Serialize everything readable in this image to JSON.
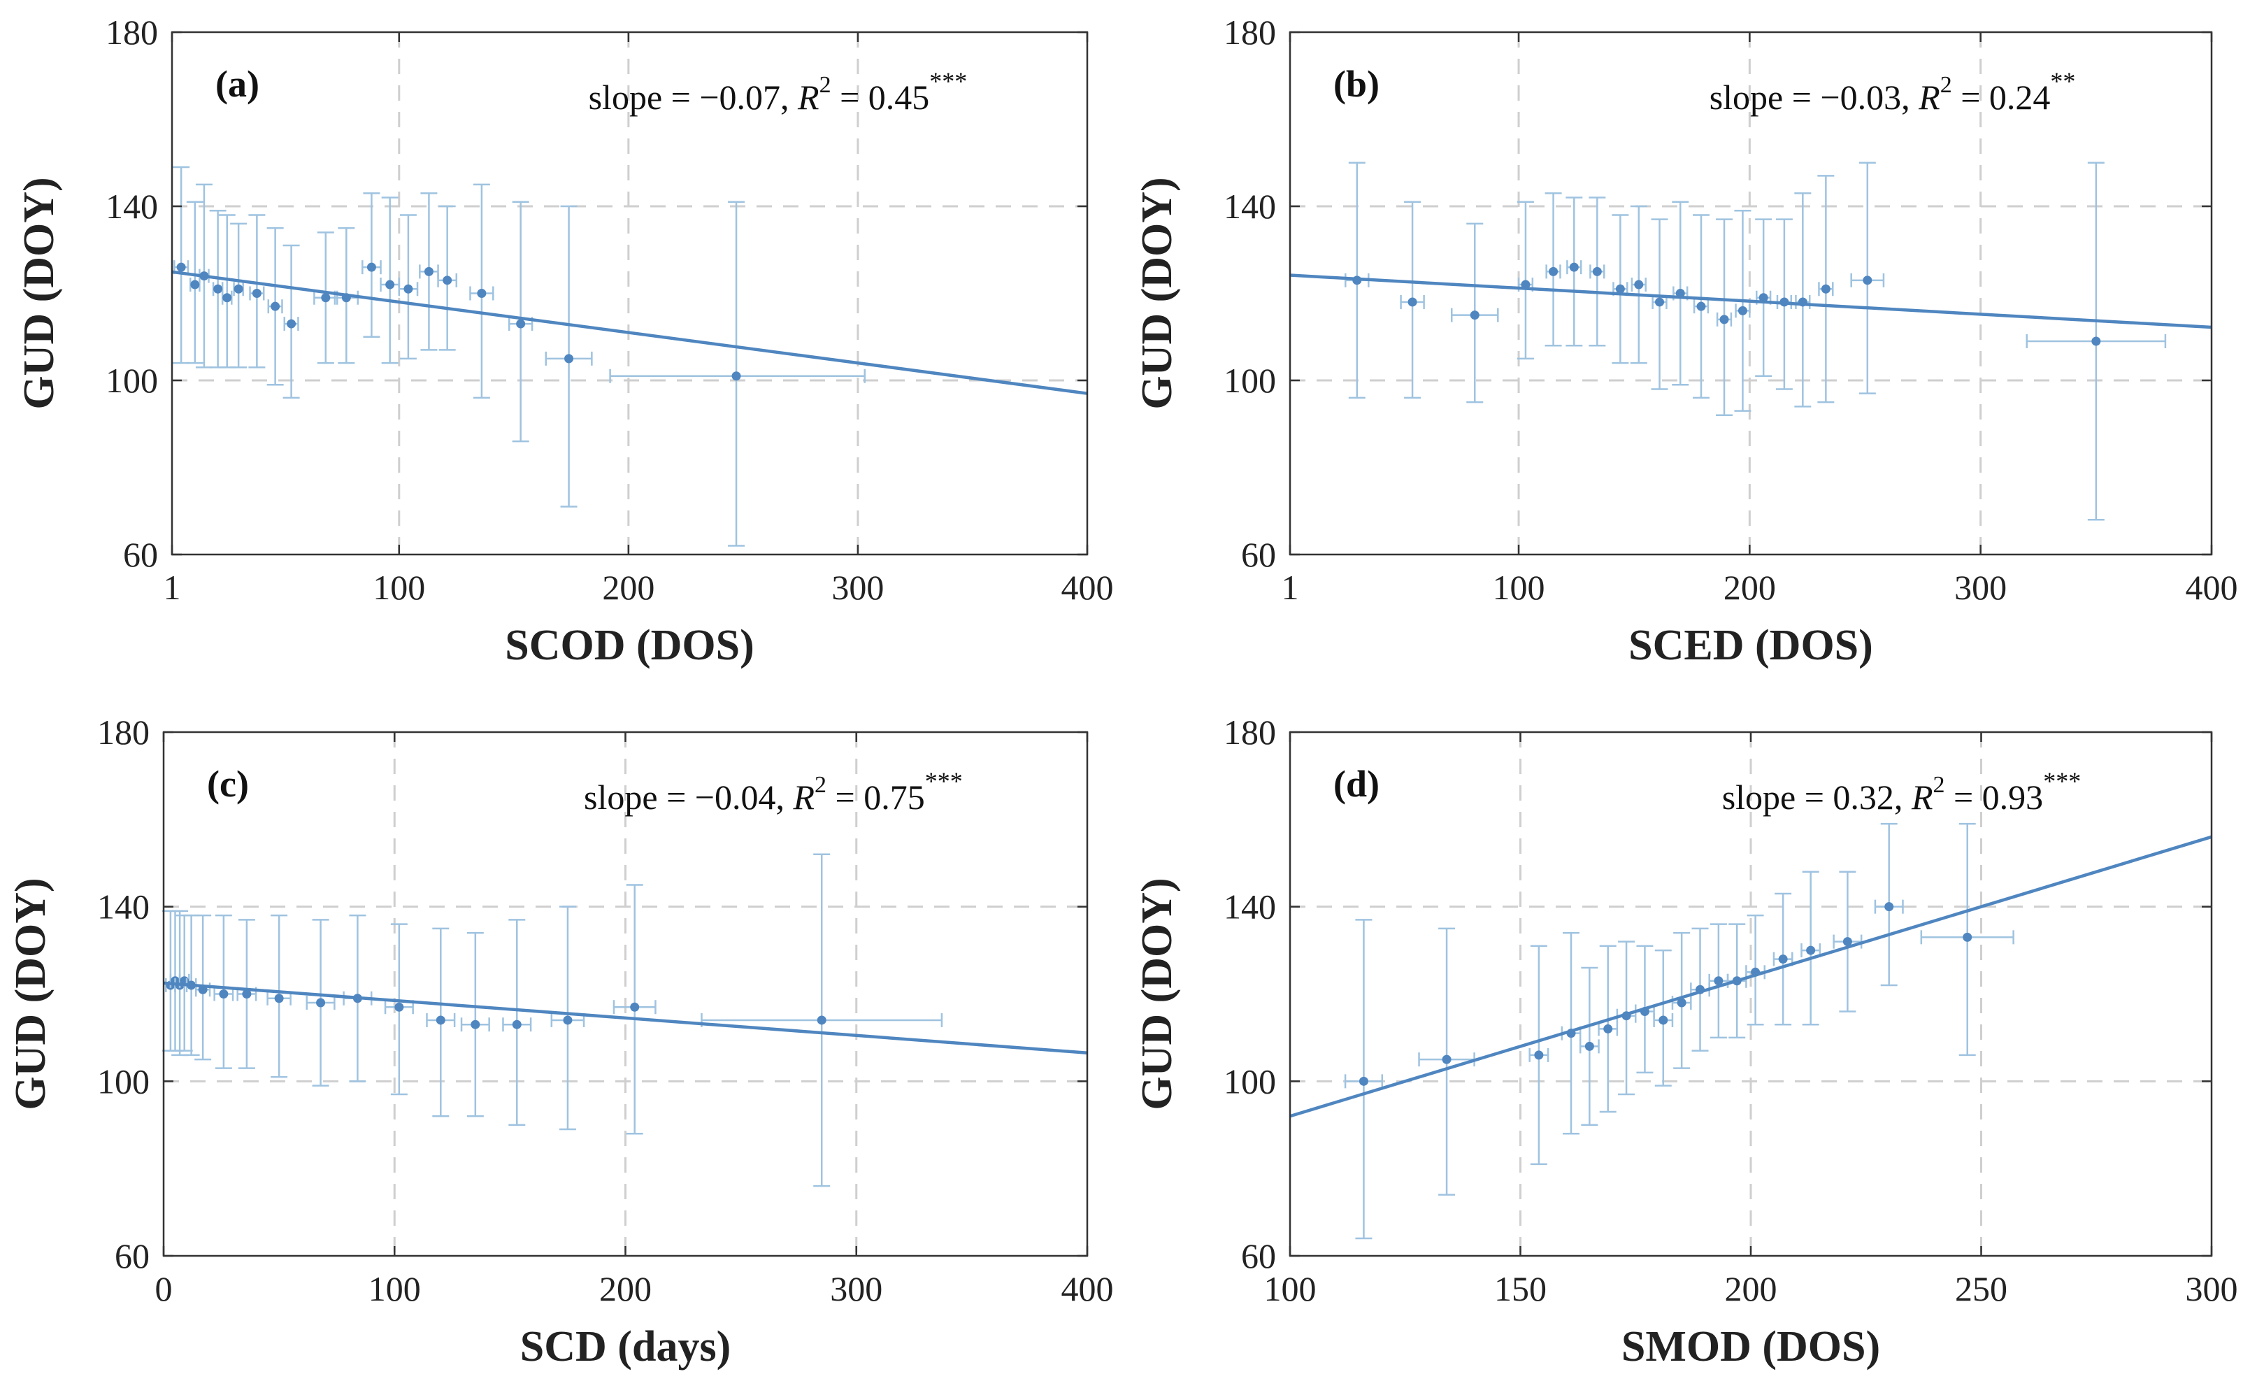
{
  "chart_data": [
    {
      "id": "a",
      "type": "scatter",
      "panel_label": "(a)",
      "stat_prefix": "slope = −0.07, ",
      "stat_r": "R",
      "stat_exp": "2",
      "stat_suffix": " = 0.45",
      "stat_sig": "***",
      "xlabel": "SCOD (DOS)",
      "ylabel": "GUD (DOY)",
      "xlim": [
        1,
        400
      ],
      "ylim": [
        60,
        180
      ],
      "xticks": [
        1,
        100,
        200,
        300,
        400
      ],
      "xtick_labels": [
        "1",
        "100",
        "200",
        "300",
        "400"
      ],
      "yticks": [
        60,
        100,
        140,
        180
      ],
      "ytick_labels": [
        "60",
        "100",
        "140",
        "180"
      ],
      "grid_x": [
        100,
        200,
        300
      ],
      "grid_y": [
        100,
        140
      ],
      "fit": {
        "slope": -0.07,
        "intercept": 125
      },
      "points": [
        {
          "x": 5,
          "y": 126,
          "ylo": 104,
          "yhi": 149,
          "xlo": 2,
          "xhi": 8
        },
        {
          "x": 11,
          "y": 122,
          "ylo": 104,
          "yhi": 141,
          "xlo": 9,
          "xhi": 13
        },
        {
          "x": 15,
          "y": 124,
          "ylo": 103,
          "yhi": 145,
          "xlo": 13,
          "xhi": 17
        },
        {
          "x": 21,
          "y": 121,
          "ylo": 103,
          "yhi": 139,
          "xlo": 19,
          "xhi": 23
        },
        {
          "x": 25,
          "y": 119,
          "ylo": 103,
          "yhi": 138,
          "xlo": 23,
          "xhi": 27
        },
        {
          "x": 30,
          "y": 121,
          "ylo": 103,
          "yhi": 136,
          "xlo": 28,
          "xhi": 32
        },
        {
          "x": 38,
          "y": 120,
          "ylo": 103,
          "yhi": 138,
          "xlo": 35,
          "xhi": 41
        },
        {
          "x": 46,
          "y": 117,
          "ylo": 99,
          "yhi": 135,
          "xlo": 43,
          "xhi": 49
        },
        {
          "x": 53,
          "y": 113,
          "ylo": 96,
          "yhi": 131,
          "xlo": 50,
          "xhi": 56
        },
        {
          "x": 68,
          "y": 119,
          "ylo": 104,
          "yhi": 134,
          "xlo": 63,
          "xhi": 73
        },
        {
          "x": 77,
          "y": 119,
          "ylo": 104,
          "yhi": 135,
          "xlo": 72,
          "xhi": 82
        },
        {
          "x": 88,
          "y": 126,
          "ylo": 110,
          "yhi": 143,
          "xlo": 84,
          "xhi": 92
        },
        {
          "x": 96,
          "y": 122,
          "ylo": 104,
          "yhi": 142,
          "xlo": 92,
          "xhi": 100
        },
        {
          "x": 104,
          "y": 121,
          "ylo": 105,
          "yhi": 138,
          "xlo": 100,
          "xhi": 108
        },
        {
          "x": 113,
          "y": 125,
          "ylo": 107,
          "yhi": 143,
          "xlo": 109,
          "xhi": 117
        },
        {
          "x": 121,
          "y": 123,
          "ylo": 107,
          "yhi": 140,
          "xlo": 117,
          "xhi": 125
        },
        {
          "x": 136,
          "y": 120,
          "ylo": 96,
          "yhi": 145,
          "xlo": 131,
          "xhi": 141
        },
        {
          "x": 153,
          "y": 113,
          "ylo": 86,
          "yhi": 141,
          "xlo": 148,
          "xhi": 158
        },
        {
          "x": 174,
          "y": 105,
          "ylo": 71,
          "yhi": 140,
          "xlo": 164,
          "xhi": 184
        },
        {
          "x": 247,
          "y": 101,
          "ylo": 62,
          "yhi": 141,
          "xlo": 192,
          "xhi": 303
        }
      ]
    },
    {
      "id": "b",
      "type": "scatter",
      "panel_label": "(b)",
      "stat_prefix": "slope = −0.03, ",
      "stat_r": "R",
      "stat_exp": "2",
      "stat_suffix": " = 0.24",
      "stat_sig": "**",
      "xlabel": "SCED (DOS)",
      "ylabel": "GUD (DOY)",
      "xlim": [
        1,
        400
      ],
      "ylim": [
        60,
        180
      ],
      "xticks": [
        1,
        100,
        200,
        300,
        400
      ],
      "xtick_labels": [
        "1",
        "100",
        "200",
        "300",
        "400"
      ],
      "yticks": [
        60,
        100,
        140,
        180
      ],
      "ytick_labels": [
        "60",
        "100",
        "140",
        "180"
      ],
      "grid_x": [
        100,
        200,
        300
      ],
      "grid_y": [
        100,
        140
      ],
      "fit": {
        "slope": -0.03,
        "intercept": 124.2
      },
      "points": [
        {
          "x": 30,
          "y": 123,
          "ylo": 96,
          "yhi": 150,
          "xlo": 25,
          "xhi": 35
        },
        {
          "x": 54,
          "y": 118,
          "ylo": 96,
          "yhi": 141,
          "xlo": 49,
          "xhi": 59
        },
        {
          "x": 81,
          "y": 115,
          "ylo": 95,
          "yhi": 136,
          "xlo": 71,
          "xhi": 91
        },
        {
          "x": 103,
          "y": 122,
          "ylo": 105,
          "yhi": 141,
          "xlo": 100,
          "xhi": 106
        },
        {
          "x": 115,
          "y": 125,
          "ylo": 108,
          "yhi": 143,
          "xlo": 112,
          "xhi": 118
        },
        {
          "x": 124,
          "y": 126,
          "ylo": 108,
          "yhi": 142,
          "xlo": 121,
          "xhi": 127
        },
        {
          "x": 134,
          "y": 125,
          "ylo": 108,
          "yhi": 142,
          "xlo": 131,
          "xhi": 137
        },
        {
          "x": 144,
          "y": 121,
          "ylo": 104,
          "yhi": 138,
          "xlo": 141,
          "xhi": 147
        },
        {
          "x": 152,
          "y": 122,
          "ylo": 104,
          "yhi": 140,
          "xlo": 149,
          "xhi": 155
        },
        {
          "x": 161,
          "y": 118,
          "ylo": 98,
          "yhi": 137,
          "xlo": 158,
          "xhi": 164
        },
        {
          "x": 170,
          "y": 120,
          "ylo": 99,
          "yhi": 141,
          "xlo": 167,
          "xhi": 173
        },
        {
          "x": 179,
          "y": 117,
          "ylo": 96,
          "yhi": 138,
          "xlo": 176,
          "xhi": 182
        },
        {
          "x": 189,
          "y": 114,
          "ylo": 92,
          "yhi": 137,
          "xlo": 186,
          "xhi": 192
        },
        {
          "x": 197,
          "y": 116,
          "ylo": 93,
          "yhi": 139,
          "xlo": 194,
          "xhi": 200
        },
        {
          "x": 206,
          "y": 119,
          "ylo": 101,
          "yhi": 137,
          "xlo": 203,
          "xhi": 209
        },
        {
          "x": 215,
          "y": 118,
          "ylo": 98,
          "yhi": 137,
          "xlo": 212,
          "xhi": 218
        },
        {
          "x": 223,
          "y": 118,
          "ylo": 94,
          "yhi": 143,
          "xlo": 220,
          "xhi": 226
        },
        {
          "x": 233,
          "y": 121,
          "ylo": 95,
          "yhi": 147,
          "xlo": 230,
          "xhi": 236
        },
        {
          "x": 251,
          "y": 123,
          "ylo": 97,
          "yhi": 150,
          "xlo": 244,
          "xhi": 258
        },
        {
          "x": 350,
          "y": 109,
          "ylo": 68,
          "yhi": 150,
          "xlo": 320,
          "xhi": 380
        }
      ]
    },
    {
      "id": "c",
      "type": "scatter",
      "panel_label": "(c)",
      "stat_prefix": "slope = −0.04, ",
      "stat_r": "R",
      "stat_exp": "2",
      "stat_suffix": " = 0.75",
      "stat_sig": "***",
      "xlabel": "SCD (days)",
      "ylabel": "GUD (DOY)",
      "xlim": [
        0,
        400
      ],
      "ylim": [
        60,
        180
      ],
      "xticks": [
        0,
        100,
        200,
        300,
        400
      ],
      "xtick_labels": [
        "0",
        "100",
        "200",
        "300",
        "400"
      ],
      "yticks": [
        60,
        100,
        140,
        180
      ],
      "ytick_labels": [
        "60",
        "100",
        "140",
        "180"
      ],
      "grid_x": [
        100,
        200,
        300
      ],
      "grid_y": [
        100,
        140
      ],
      "fit": {
        "slope": -0.04,
        "intercept": 122.5
      },
      "points": [
        {
          "x": 3,
          "y": 122,
          "ylo": 107,
          "yhi": 139,
          "xlo": 1,
          "xhi": 5
        },
        {
          "x": 5,
          "y": 123,
          "ylo": 107,
          "yhi": 139,
          "xlo": 3,
          "xhi": 7
        },
        {
          "x": 7,
          "y": 122,
          "ylo": 106,
          "yhi": 139,
          "xlo": 5,
          "xhi": 9
        },
        {
          "x": 9,
          "y": 123,
          "ylo": 107,
          "yhi": 138,
          "xlo": 7,
          "xhi": 11
        },
        {
          "x": 12,
          "y": 122,
          "ylo": 106,
          "yhi": 138,
          "xlo": 10,
          "xhi": 14
        },
        {
          "x": 17,
          "y": 121,
          "ylo": 105,
          "yhi": 138,
          "xlo": 14,
          "xhi": 20
        },
        {
          "x": 26,
          "y": 120,
          "ylo": 103,
          "yhi": 138,
          "xlo": 22,
          "xhi": 30
        },
        {
          "x": 36,
          "y": 120,
          "ylo": 103,
          "yhi": 137,
          "xlo": 32,
          "xhi": 40
        },
        {
          "x": 50,
          "y": 119,
          "ylo": 101,
          "yhi": 138,
          "xlo": 45,
          "xhi": 55
        },
        {
          "x": 68,
          "y": 118,
          "ylo": 99,
          "yhi": 137,
          "xlo": 62,
          "xhi": 74
        },
        {
          "x": 84,
          "y": 119,
          "ylo": 100,
          "yhi": 138,
          "xlo": 78,
          "xhi": 90
        },
        {
          "x": 102,
          "y": 117,
          "ylo": 97,
          "yhi": 136,
          "xlo": 96,
          "xhi": 108
        },
        {
          "x": 120,
          "y": 114,
          "ylo": 92,
          "yhi": 135,
          "xlo": 114,
          "xhi": 126
        },
        {
          "x": 135,
          "y": 113,
          "ylo": 92,
          "yhi": 134,
          "xlo": 129,
          "xhi": 141
        },
        {
          "x": 153,
          "y": 113,
          "ylo": 90,
          "yhi": 137,
          "xlo": 147,
          "xhi": 159
        },
        {
          "x": 175,
          "y": 114,
          "ylo": 89,
          "yhi": 140,
          "xlo": 168,
          "xhi": 182
        },
        {
          "x": 204,
          "y": 117,
          "ylo": 88,
          "yhi": 145,
          "xlo": 195,
          "xhi": 213
        },
        {
          "x": 285,
          "y": 114,
          "ylo": 76,
          "yhi": 152,
          "xlo": 233,
          "xhi": 337
        }
      ]
    },
    {
      "id": "d",
      "type": "scatter",
      "panel_label": "(d)",
      "stat_prefix": "slope = 0.32, ",
      "stat_r": "R",
      "stat_exp": "2",
      "stat_suffix": " = 0.93",
      "stat_sig": "***",
      "xlabel": "SMOD (DOS)",
      "ylabel": "GUD (DOY)",
      "xlim": [
        100,
        300
      ],
      "ylim": [
        60,
        180
      ],
      "xticks": [
        100,
        150,
        200,
        250,
        300
      ],
      "xtick_labels": [
        "100",
        "150",
        "200",
        "250",
        "300"
      ],
      "yticks": [
        60,
        100,
        140,
        180
      ],
      "ytick_labels": [
        "60",
        "100",
        "140",
        "180"
      ],
      "grid_x": [
        150,
        200,
        250
      ],
      "grid_y": [
        100,
        140
      ],
      "fit": {
        "slope": 0.32,
        "intercept": 60
      },
      "points": [
        {
          "x": 116,
          "y": 100,
          "ylo": 64,
          "yhi": 137,
          "xlo": 112,
          "xhi": 120
        },
        {
          "x": 134,
          "y": 105,
          "ylo": 74,
          "yhi": 135,
          "xlo": 128,
          "xhi": 140
        },
        {
          "x": 154,
          "y": 106,
          "ylo": 81,
          "yhi": 131,
          "xlo": 152,
          "xhi": 156
        },
        {
          "x": 161,
          "y": 111,
          "ylo": 88,
          "yhi": 134,
          "xlo": 159,
          "xhi": 163
        },
        {
          "x": 165,
          "y": 108,
          "ylo": 90,
          "yhi": 126,
          "xlo": 163,
          "xhi": 167
        },
        {
          "x": 169,
          "y": 112,
          "ylo": 93,
          "yhi": 131,
          "xlo": 167,
          "xhi": 171
        },
        {
          "x": 173,
          "y": 115,
          "ylo": 97,
          "yhi": 132,
          "xlo": 171,
          "xhi": 175
        },
        {
          "x": 177,
          "y": 116,
          "ylo": 102,
          "yhi": 131,
          "xlo": 175,
          "xhi": 179
        },
        {
          "x": 181,
          "y": 114,
          "ylo": 99,
          "yhi": 130,
          "xlo": 179,
          "xhi": 183
        },
        {
          "x": 185,
          "y": 118,
          "ylo": 103,
          "yhi": 134,
          "xlo": 183,
          "xhi": 187
        },
        {
          "x": 189,
          "y": 121,
          "ylo": 107,
          "yhi": 135,
          "xlo": 187,
          "xhi": 191
        },
        {
          "x": 193,
          "y": 123,
          "ylo": 110,
          "yhi": 136,
          "xlo": 191,
          "xhi": 195
        },
        {
          "x": 197,
          "y": 123,
          "ylo": 110,
          "yhi": 136,
          "xlo": 195,
          "xhi": 199
        },
        {
          "x": 201,
          "y": 125,
          "ylo": 113,
          "yhi": 138,
          "xlo": 199,
          "xhi": 203
        },
        {
          "x": 207,
          "y": 128,
          "ylo": 113,
          "yhi": 143,
          "xlo": 205,
          "xhi": 209
        },
        {
          "x": 213,
          "y": 130,
          "ylo": 113,
          "yhi": 148,
          "xlo": 211,
          "xhi": 215
        },
        {
          "x": 221,
          "y": 132,
          "ylo": 116,
          "yhi": 148,
          "xlo": 218,
          "xhi": 224
        },
        {
          "x": 230,
          "y": 140,
          "ylo": 122,
          "yhi": 159,
          "xlo": 227,
          "xhi": 233
        },
        {
          "x": 247,
          "y": 133,
          "ylo": 106,
          "yhi": 159,
          "xlo": 237,
          "xhi": 257
        }
      ]
    }
  ]
}
